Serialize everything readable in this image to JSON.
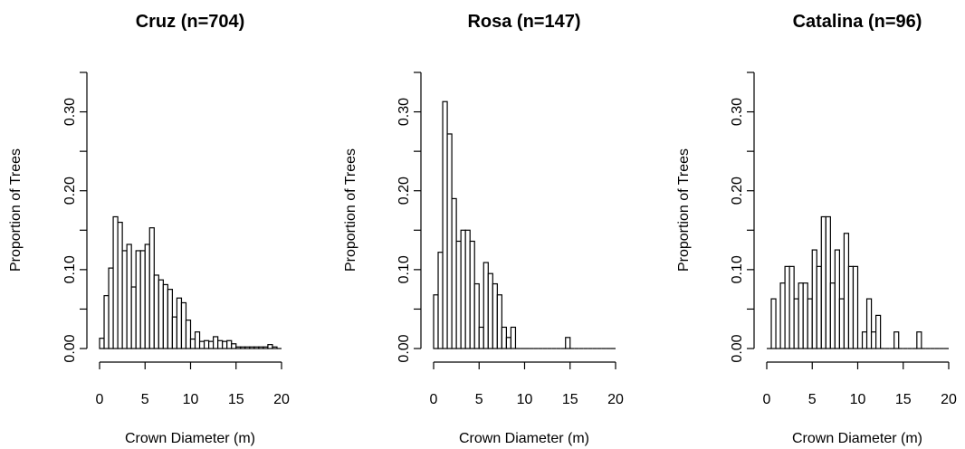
{
  "chart_data": [
    {
      "type": "bar",
      "title": "Cruz (n=704)",
      "xlabel": "Crown Diameter (m)",
      "ylabel": "Proportion of Trees",
      "xlim": [
        0,
        20
      ],
      "ylim": [
        0,
        0.35
      ],
      "xticks": [
        "0",
        "5",
        "10",
        "15",
        "20"
      ],
      "yticks": [
        "0.00",
        "0.10",
        "0.20",
        "0.30"
      ],
      "bin_width": 0.5,
      "bin_starts": [
        0,
        0.5,
        1,
        1.5,
        2,
        2.5,
        3,
        3.5,
        4,
        4.5,
        5,
        5.5,
        6,
        6.5,
        7,
        7.5,
        8,
        8.5,
        9,
        9.5,
        10,
        10.5,
        11,
        11.5,
        12,
        12.5,
        13,
        13.5,
        14,
        14.5,
        15,
        15.5,
        16,
        16.5,
        17,
        17.5,
        18,
        18.5,
        19,
        19.5
      ],
      "values": [
        0.013,
        0.067,
        0.102,
        0.167,
        0.16,
        0.124,
        0.132,
        0.078,
        0.124,
        0.124,
        0.132,
        0.153,
        0.093,
        0.087,
        0.081,
        0.075,
        0.04,
        0.064,
        0.058,
        0.036,
        0.012,
        0.021,
        0.009,
        0.01,
        0.009,
        0.015,
        0.01,
        0.009,
        0.01,
        0.006,
        0.002,
        0.002,
        0.002,
        0.002,
        0.002,
        0.002,
        0.002,
        0.005,
        0.002,
        0.0
      ]
    },
    {
      "type": "bar",
      "title": "Rosa (n=147)",
      "xlabel": "Crown Diameter (m)",
      "ylabel": "Proportion of Trees",
      "xlim": [
        0,
        20
      ],
      "ylim": [
        0,
        0.35
      ],
      "xticks": [
        "0",
        "5",
        "10",
        "15",
        "20"
      ],
      "yticks": [
        "0.00",
        "0.10",
        "0.20",
        "0.30"
      ],
      "bin_width": 0.5,
      "bin_starts": [
        0,
        0.5,
        1,
        1.5,
        2,
        2.5,
        3,
        3.5,
        4,
        4.5,
        5,
        5.5,
        6,
        6.5,
        7,
        7.5,
        8,
        8.5,
        9,
        9.5,
        10,
        10.5,
        11,
        11.5,
        12,
        12.5,
        13,
        13.5,
        14,
        14.5,
        15,
        15.5,
        16,
        16.5,
        17,
        17.5,
        18,
        18.5,
        19,
        19.5
      ],
      "values": [
        0.068,
        0.122,
        0.313,
        0.272,
        0.19,
        0.136,
        0.15,
        0.15,
        0.136,
        0.082,
        0.027,
        0.109,
        0.095,
        0.082,
        0.068,
        0.027,
        0.014,
        0.027,
        0.0,
        0.0,
        0.0,
        0.0,
        0.0,
        0.0,
        0.0,
        0.0,
        0.0,
        0.0,
        0.0,
        0.014,
        0.0,
        0.0,
        0.0,
        0.0,
        0.0,
        0.0,
        0.0,
        0.0,
        0.0,
        0.0
      ]
    },
    {
      "type": "bar",
      "title": "Catalina (n=96)",
      "xlabel": "Crown Diameter (m)",
      "ylabel": "Proportion of Trees",
      "xlim": [
        0,
        20
      ],
      "ylim": [
        0,
        0.35
      ],
      "xticks": [
        "0",
        "5",
        "10",
        "15",
        "20"
      ],
      "yticks": [
        "0.00",
        "0.10",
        "0.20",
        "0.30"
      ],
      "bin_width": 0.5,
      "bin_starts": [
        0,
        0.5,
        1,
        1.5,
        2,
        2.5,
        3,
        3.5,
        4,
        4.5,
        5,
        5.5,
        6,
        6.5,
        7,
        7.5,
        8,
        8.5,
        9,
        9.5,
        10,
        10.5,
        11,
        11.5,
        12,
        12.5,
        13,
        13.5,
        14,
        14.5,
        15,
        15.5,
        16,
        16.5,
        17,
        17.5,
        18,
        18.5,
        19,
        19.5
      ],
      "values": [
        0.0,
        0.063,
        0.0,
        0.083,
        0.104,
        0.104,
        0.063,
        0.083,
        0.083,
        0.063,
        0.125,
        0.104,
        0.167,
        0.167,
        0.083,
        0.125,
        0.063,
        0.146,
        0.104,
        0.104,
        0.0,
        0.021,
        0.063,
        0.021,
        0.042,
        0.0,
        0.0,
        0.0,
        0.021,
        0.0,
        0.0,
        0.0,
        0.0,
        0.021,
        0.0,
        0.0,
        0.0,
        0.0,
        0.0,
        0.0
      ]
    }
  ]
}
